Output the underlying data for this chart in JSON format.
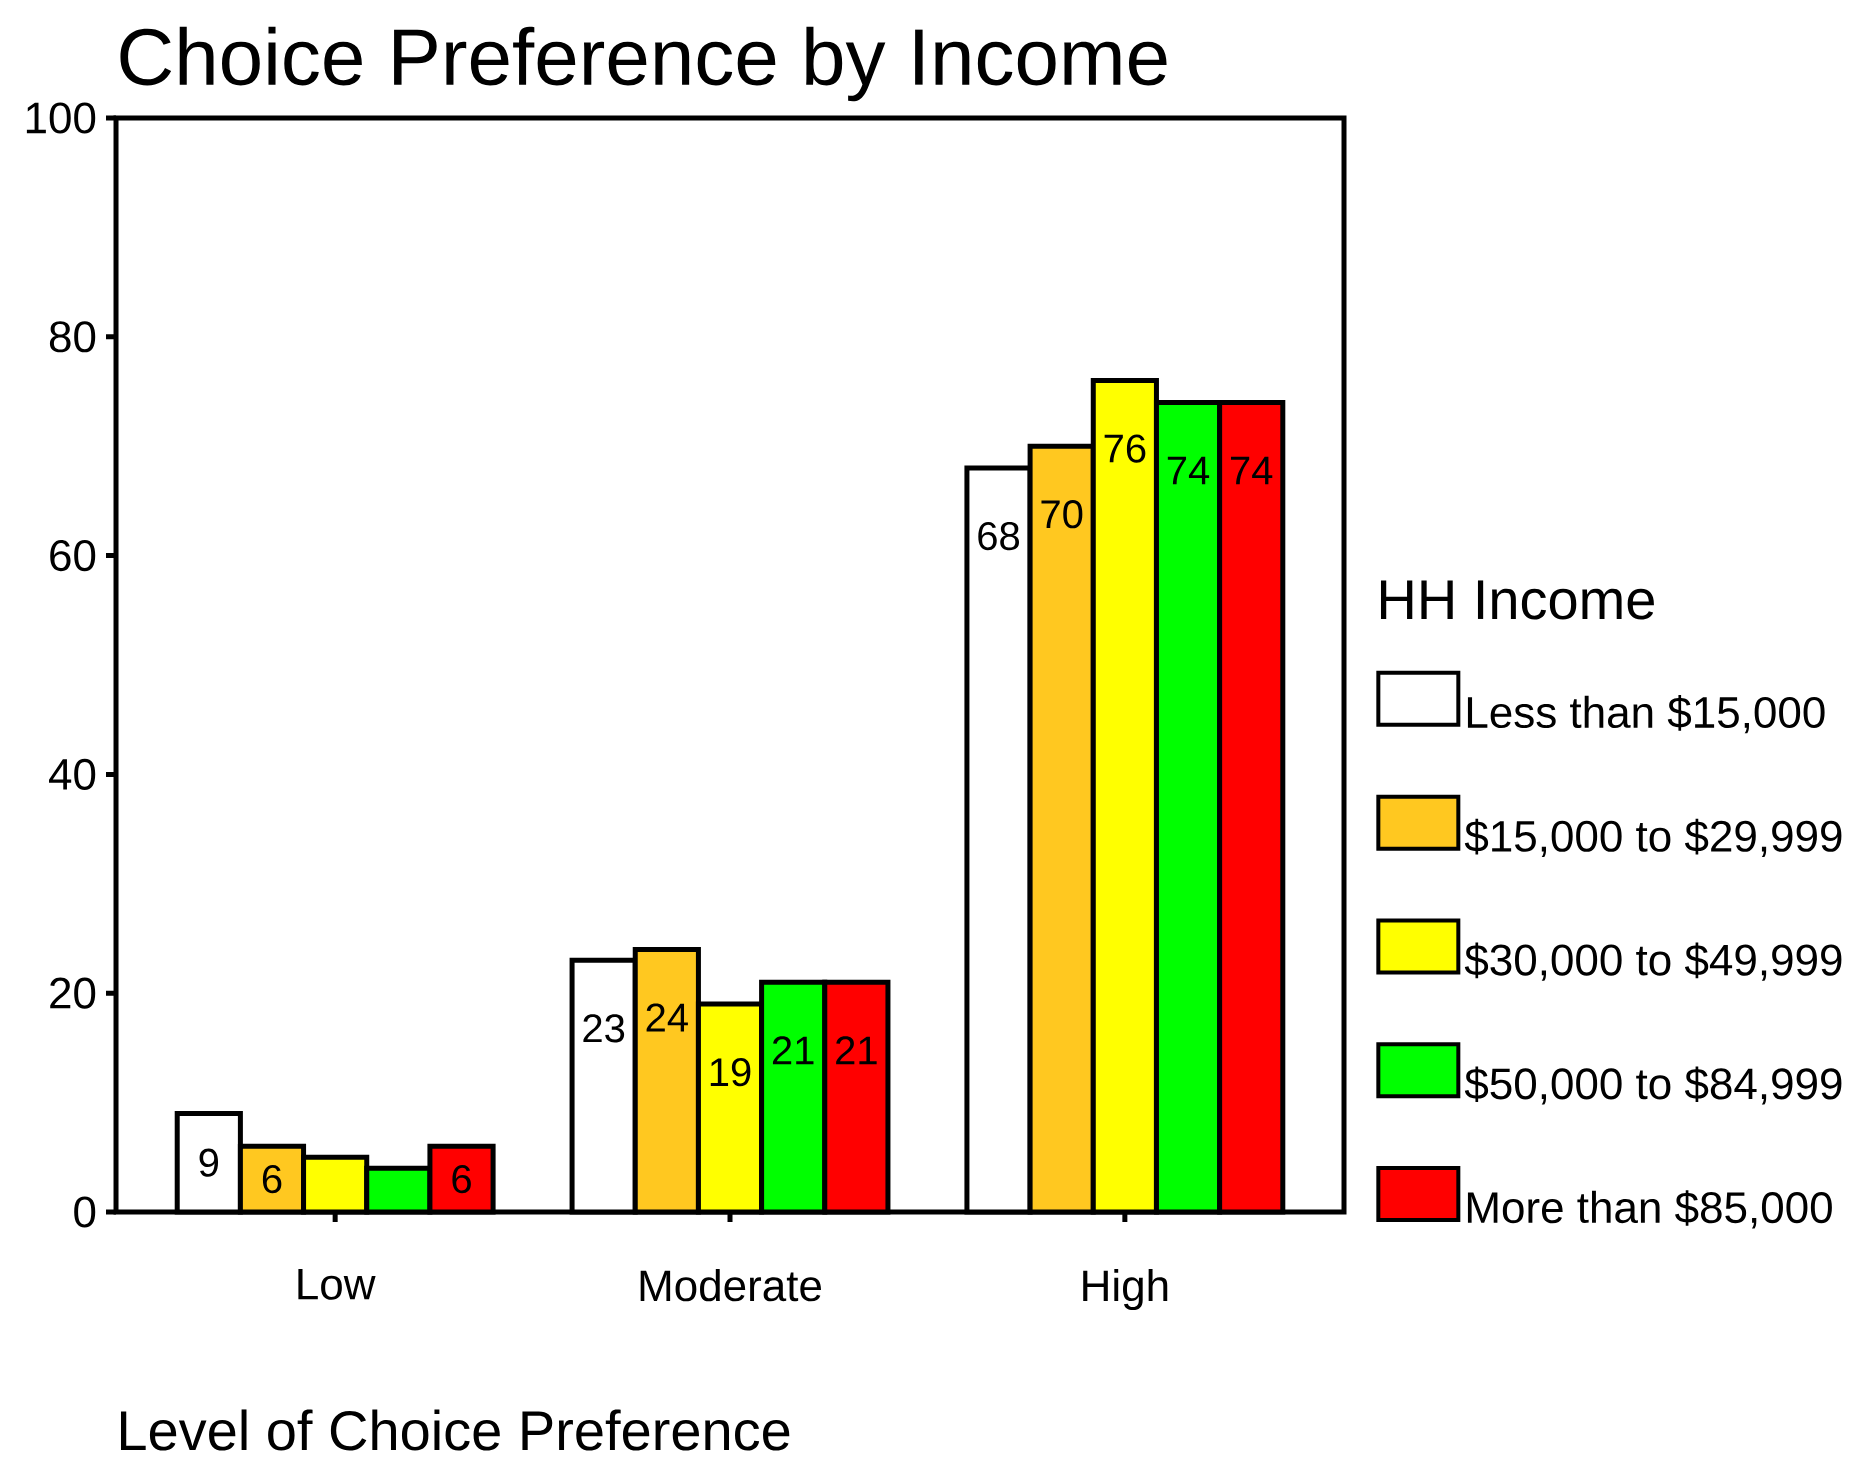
{
  "chart_data": {
    "type": "bar",
    "title": "Choice Preference by Income",
    "xlabel": "Level of Choice Preference",
    "legend_title": "HH Income",
    "legend": "right",
    "categories": [
      "Low",
      "Moderate",
      "High"
    ],
    "ylim": [
      0,
      100
    ],
    "yticks": [
      0,
      20,
      40,
      60,
      80,
      100
    ],
    "series": [
      {
        "name": "Less than $15,000",
        "color": "#ffffff",
        "values": [
          9,
          23,
          68
        ],
        "value_labels": [
          "9",
          "23",
          "68"
        ]
      },
      {
        "name": "$15,000 to $29,999",
        "color": "#ffc820",
        "values": [
          6,
          24,
          70
        ],
        "value_labels": [
          "6",
          "24",
          "70"
        ]
      },
      {
        "name": "$30,000 to $49,999",
        "color": "#ffff00",
        "values": [
          5,
          19,
          76
        ],
        "value_labels": [
          null,
          "19",
          "76"
        ]
      },
      {
        "name": "$50,000 to $84,999",
        "color": "#00ff00",
        "values": [
          4,
          21,
          74
        ],
        "value_labels": [
          null,
          "21",
          "74"
        ]
      },
      {
        "name": "More than $85,000",
        "color": "#ff0000",
        "values": [
          6,
          21,
          74
        ],
        "value_labels": [
          "6",
          "21",
          "74"
        ]
      }
    ]
  }
}
